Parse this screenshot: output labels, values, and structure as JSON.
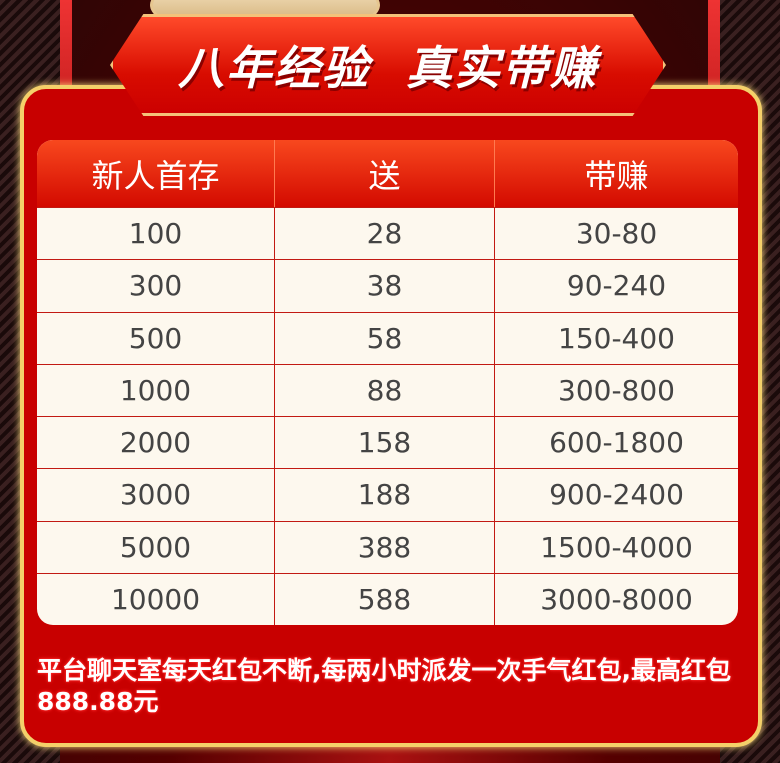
{
  "banner": {
    "title": "八年经验  真实带赚"
  },
  "table": {
    "headers": [
      "新人首存",
      "送",
      "带赚"
    ],
    "rows": [
      [
        "100",
        "28",
        "30-80"
      ],
      [
        "300",
        "38",
        "90-240"
      ],
      [
        "500",
        "58",
        "150-400"
      ],
      [
        "1000",
        "88",
        "300-800"
      ],
      [
        "2000",
        "158",
        "600-1800"
      ],
      [
        "3000",
        "188",
        "900-2400"
      ],
      [
        "5000",
        "388",
        "1500-4000"
      ],
      [
        "10000",
        "588",
        "3000-8000"
      ]
    ]
  },
  "notice": "平台聊天室每天红包不断,每两小时派发一次手气红包,最高红包888.88元",
  "colors": {
    "panel": "#c80000",
    "border": "#f4d06a",
    "table_bg": "#fdf8ee"
  }
}
